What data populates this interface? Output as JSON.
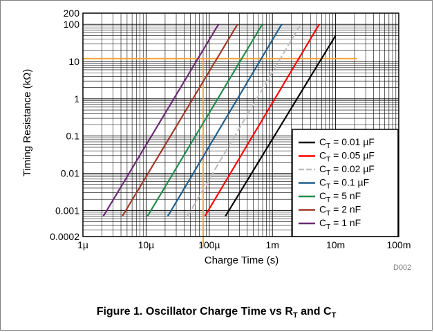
{
  "chart_data": {
    "type": "line",
    "xlabel": "Charge Time (s)",
    "ylabel": "Timing Resistance (kΩ)",
    "x_scale": "log",
    "y_scale": "log",
    "xlim": [
      1e-06,
      0.1
    ],
    "ylim": [
      0.0002,
      200
    ],
    "x_ticks": [
      1e-06,
      1e-05,
      0.0001,
      0.001,
      0.01,
      0.1
    ],
    "x_tick_labels": [
      "1µ",
      "10µ",
      "100µ",
      "1m",
      "10m",
      "100m"
    ],
    "y_ticks": [
      0.0002,
      0.001,
      0.01,
      0.1,
      1,
      10,
      100,
      200
    ],
    "y_tick_labels": [
      "0.0002",
      "0.001",
      "0.01",
      "0.1",
      "1",
      "10",
      "100",
      "200"
    ],
    "grid": true,
    "legend_position": "bottom-right",
    "series": [
      {
        "name": "CT = 0.01 µF",
        "sub": "T",
        "base": "C",
        "rest": " = 0.01 µF",
        "color": "#000000",
        "dashed": false,
        "x": [
          0.00018,
          0.01
        ],
        "y": [
          0.0007,
          50
        ]
      },
      {
        "name": "CT = 0.05 µF",
        "sub": "T",
        "base": "C",
        "rest": " = 0.05 µF",
        "color": "#ff0000",
        "dashed": false,
        "x": [
          8.5e-05,
          0.0055
        ],
        "y": [
          0.0007,
          100
        ]
      },
      {
        "name": "CT = 0.02 µF",
        "sub": "T",
        "base": "C",
        "rest": " = 0.02 µF",
        "color": "#bfbfbf",
        "dashed": true,
        "x": [
          4.5e-05,
          0.0028
        ],
        "y": [
          0.0007,
          100
        ]
      },
      {
        "name": "CT = 0.1 µF",
        "sub": "T",
        "base": "C",
        "rest": " = 0.1 µF",
        "color": "#1f5e8c",
        "dashed": false,
        "x": [
          2.2e-05,
          0.0014
        ],
        "y": [
          0.0007,
          100
        ]
      },
      {
        "name": "CT = 5 nF",
        "sub": "T",
        "base": "C",
        "rest": " = 5 nF",
        "color": "#218c4a",
        "dashed": false,
        "x": [
          1.05e-05,
          0.00069
        ],
        "y": [
          0.0007,
          100
        ]
      },
      {
        "name": "CT = 2 nF",
        "sub": "T",
        "base": "C",
        "rest": " = 2 nF",
        "color": "#a0392a",
        "dashed": false,
        "x": [
          4.2e-06,
          0.00028
        ],
        "y": [
          0.0007,
          100
        ]
      },
      {
        "name": "CT = 1 nF",
        "sub": "T",
        "base": "C",
        "rest": " = 1 nF",
        "color": "#6b2a73",
        "dashed": false,
        "x": [
          2.1e-06,
          0.00014
        ],
        "y": [
          0.0007,
          100
        ]
      }
    ],
    "annotations": [
      {
        "kind": "hline",
        "y": 12,
        "x_from": 1e-06,
        "x_to": 0.015,
        "color": "#f5a33a"
      },
      {
        "kind": "vline",
        "x": 8e-05,
        "y_from": 12,
        "y_to": 0.0002,
        "color": "#f5a33a"
      }
    ]
  },
  "footnote": "D002",
  "caption": {
    "prefix": "Figure 1. Oscillator Charge Time vs R",
    "sub1": "T",
    "mid": " and C",
    "sub2": "T"
  }
}
